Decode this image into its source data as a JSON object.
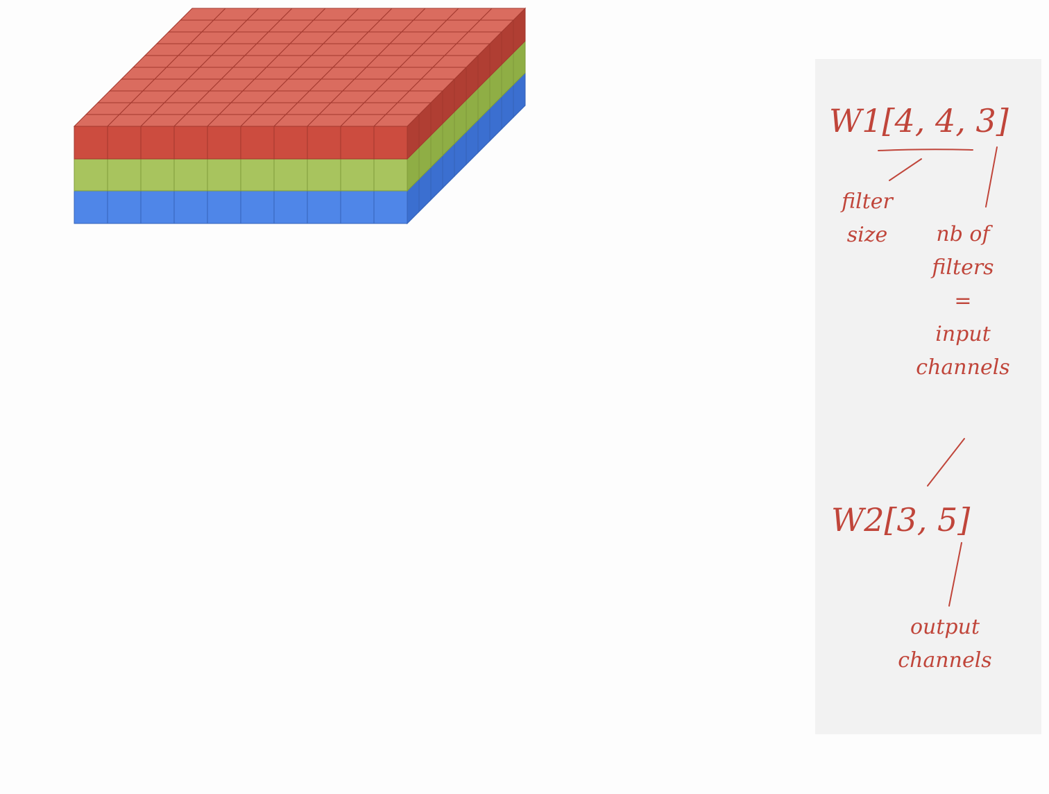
{
  "annotations": {
    "w1": {
      "label": "W1[4, 4, 3]",
      "filter_size": [
        "filter",
        "size"
      ],
      "nb_filters": [
        "nb of",
        "filters",
        "=",
        "input",
        "channels"
      ]
    },
    "w2": {
      "label": "W2[3, 5]",
      "output": [
        "output",
        "channels"
      ]
    }
  }
}
